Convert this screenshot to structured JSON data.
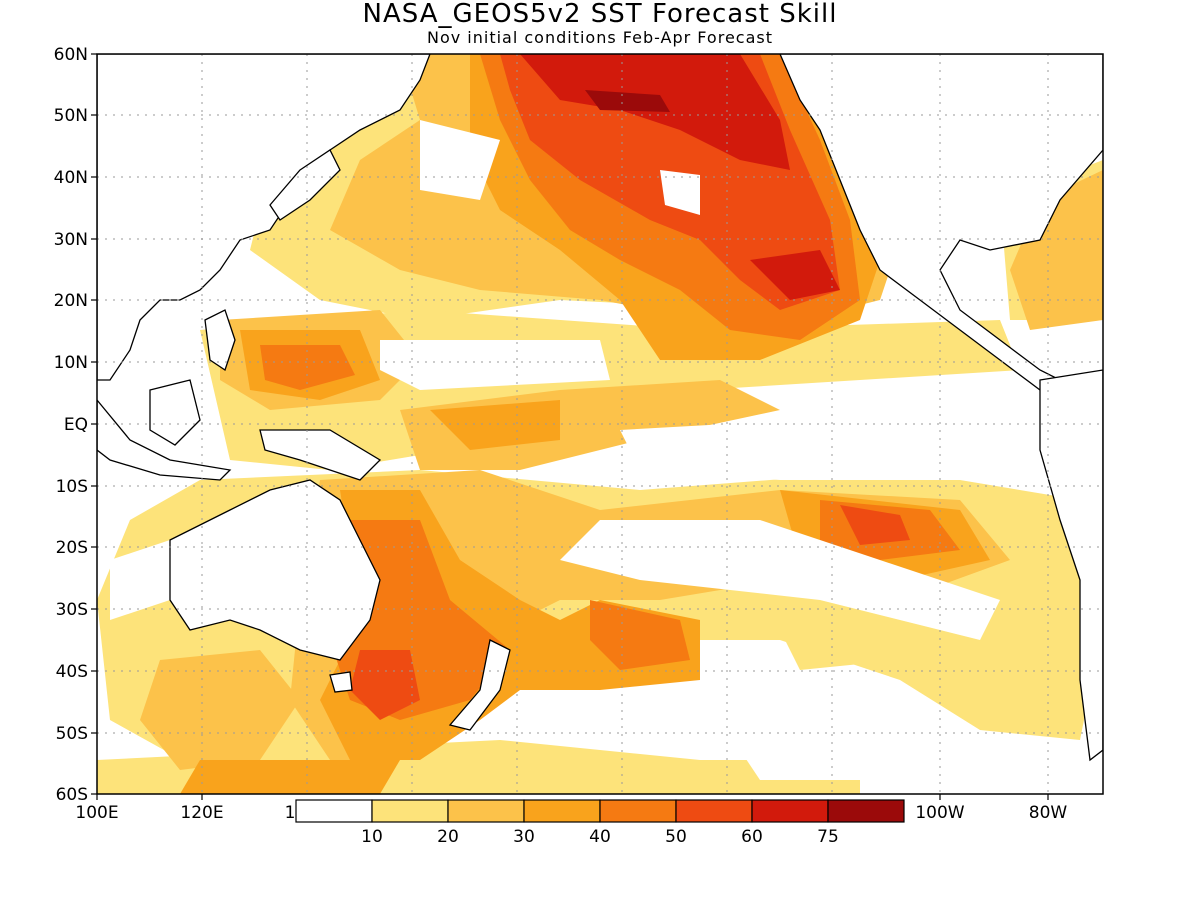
{
  "title": "NASA_GEOS5v2 SST Forecast Skill",
  "subtitle": "Nov initial conditions  Feb-Apr Forecast",
  "axes": {
    "lat_labels": [
      "60N",
      "50N",
      "40N",
      "30N",
      "20N",
      "10N",
      "EQ",
      "10S",
      "20S",
      "30S",
      "40S",
      "50S",
      "60S"
    ],
    "lon_labels": [
      "100E",
      "120E",
      "1",
      "100W",
      "80W"
    ]
  },
  "colorbar": {
    "labels": [
      "10",
      "20",
      "30",
      "40",
      "50",
      "60",
      "75"
    ],
    "colors": [
      "#ffffff",
      "#fde37a",
      "#fcc24a",
      "#f9a31c",
      "#f57a12",
      "#ee4b12",
      "#d21a0c",
      "#9b0a0a"
    ]
  },
  "icons": [
    "coastline-outline"
  ]
}
